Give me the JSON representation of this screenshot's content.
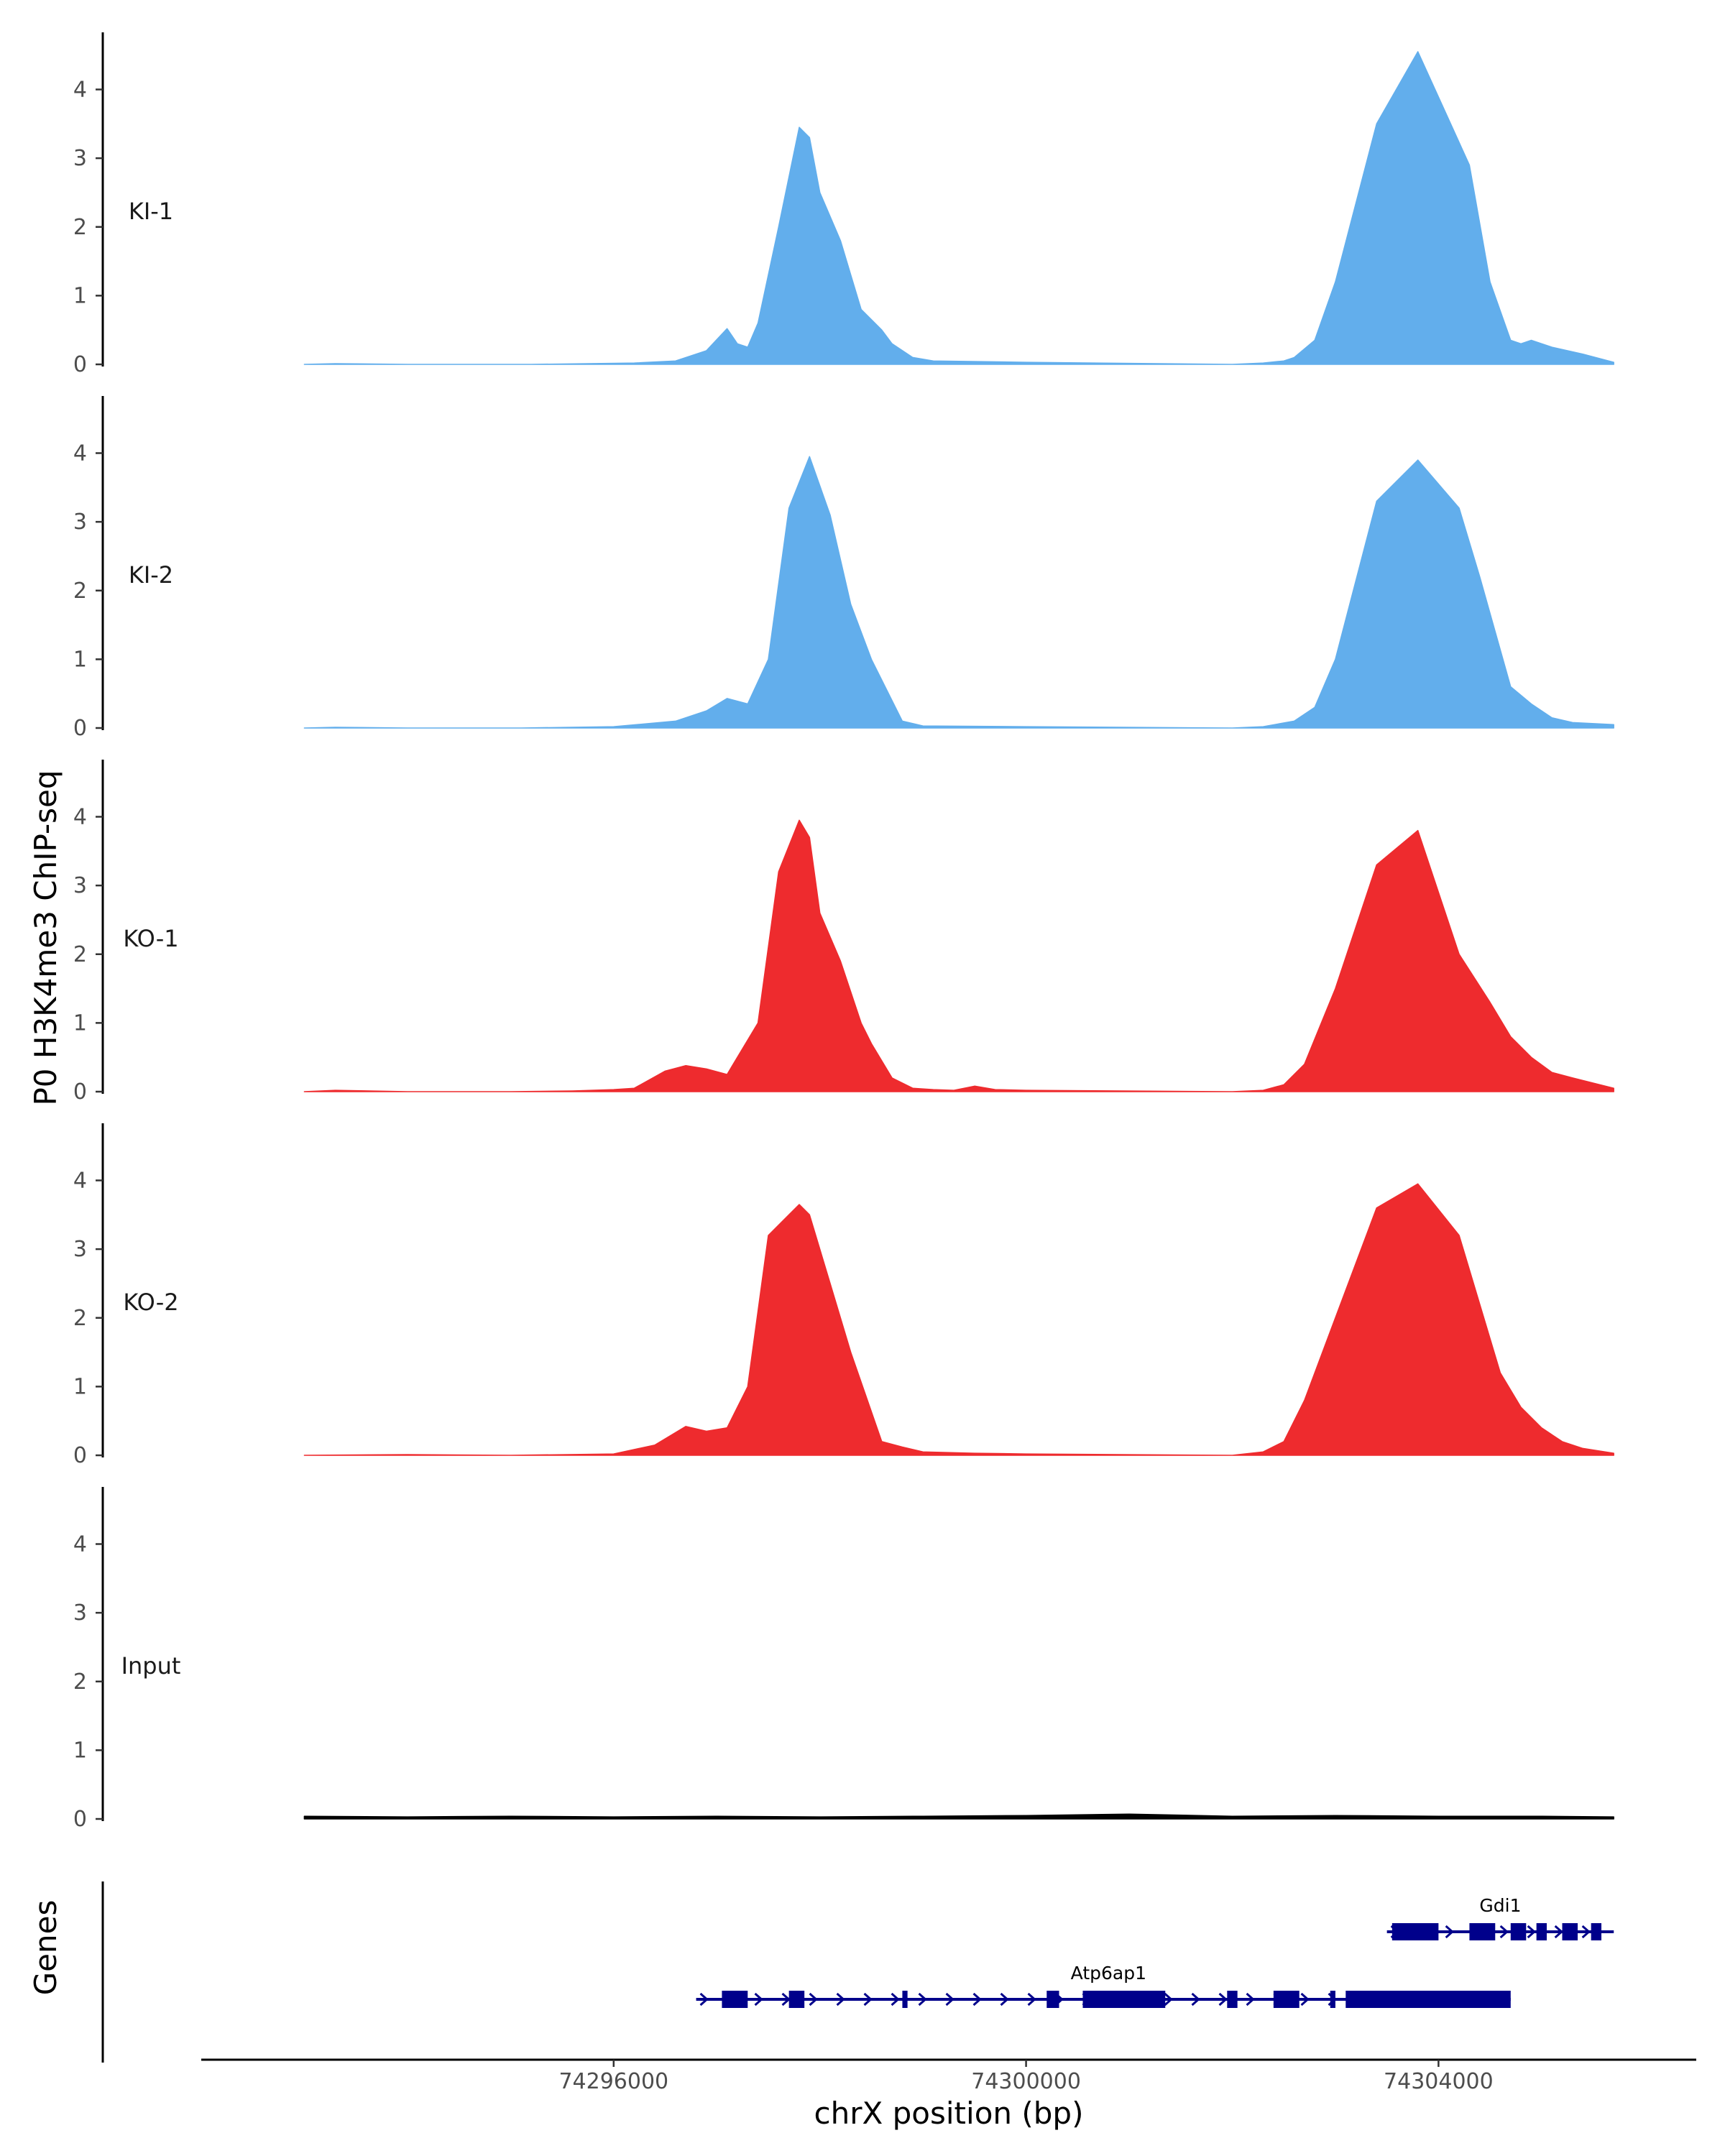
{
  "chart_data": {
    "type": "area",
    "ylabel": "P0 H3K4me3 ChIP-seq",
    "xlabel": "chrX position (bp)",
    "xlim": [
      74292000,
      74306500
    ],
    "data_xrange": [
      74293000,
      74305700
    ],
    "ylim": [
      0,
      4.8
    ],
    "yticks": [
      "0",
      "1",
      "2",
      "3",
      "4"
    ],
    "xticks": [
      {
        "value": 74296000,
        "label": "74296000"
      },
      {
        "value": 74300000,
        "label": "74300000"
      },
      {
        "value": 74304000,
        "label": "74304000"
      }
    ],
    "grid": false,
    "legend": "none",
    "colors": {
      "KI": "#62aeec",
      "KO": "#ee2b2e",
      "Input": "#000000",
      "Genes": "#00008b",
      "axis": "#000000"
    },
    "series": [
      {
        "name": "KI-1",
        "color": "#62aeec",
        "x": [
          74293000,
          74293300,
          74294000,
          74295200,
          74296200,
          74296600,
          74296900,
          74297100,
          74297200,
          74297300,
          74297400,
          74297600,
          74297800,
          74297900,
          74298000,
          74298200,
          74298400,
          74298500,
          74298600,
          74298700,
          74298900,
          74299100,
          74300000,
          74302000,
          74302300,
          74302500,
          74302600,
          74302800,
          74303000,
          74303400,
          74303800,
          74304300,
          74304500,
          74304700,
          74304800,
          74304900,
          74305100,
          74305400,
          74305700
        ],
        "values": [
          0,
          0.01,
          0,
          0,
          0.02,
          0.05,
          0.2,
          0.52,
          0.3,
          0.25,
          0.6,
          2.0,
          3.45,
          3.3,
          2.5,
          1.8,
          0.8,
          0.65,
          0.5,
          0.3,
          0.1,
          0.05,
          0.03,
          0,
          0.02,
          0.05,
          0.1,
          0.35,
          1.2,
          3.5,
          4.55,
          2.9,
          1.2,
          0.35,
          0.3,
          0.35,
          0.25,
          0.15,
          0.03
        ]
      },
      {
        "name": "KI-2",
        "color": "#62aeec",
        "x": [
          74293000,
          74293300,
          74294000,
          74295100,
          74296000,
          74296600,
          74296900,
          74297100,
          74297300,
          74297500,
          74297700,
          74297900,
          74298100,
          74298300,
          74298500,
          74298800,
          74299000,
          74300000,
          74302000,
          74302300,
          74302600,
          74302800,
          74303000,
          74303400,
          74303800,
          74304200,
          74304400,
          74304700,
          74304900,
          74305100,
          74305300,
          74305700
        ],
        "values": [
          0,
          0.01,
          0,
          0,
          0.02,
          0.1,
          0.25,
          0.43,
          0.35,
          1.0,
          3.2,
          3.95,
          3.1,
          1.8,
          1.0,
          0.1,
          0.03,
          0.02,
          0,
          0.02,
          0.1,
          0.3,
          1.0,
          3.3,
          3.9,
          3.2,
          2.2,
          0.6,
          0.35,
          0.15,
          0.08,
          0.05
        ]
      },
      {
        "name": "KO-1",
        "color": "#ee2b2e",
        "x": [
          74293000,
          74293300,
          74294000,
          74295000,
          74295600,
          74296000,
          74296200,
          74296500,
          74296700,
          74296900,
          74297100,
          74297400,
          74297600,
          74297800,
          74297900,
          74298000,
          74298200,
          74298400,
          74298500,
          74298700,
          74298900,
          74299100,
          74299300,
          74299500,
          74299700,
          74300000,
          74302000,
          74302300,
          74302500,
          74302700,
          74303000,
          74303400,
          74303800,
          74304200,
          74304500,
          74304700,
          74304900,
          74305100,
          74305300,
          74305700
        ],
        "values": [
          0,
          0.02,
          0,
          0,
          0.01,
          0.03,
          0.05,
          0.3,
          0.38,
          0.33,
          0.25,
          1.0,
          3.2,
          3.95,
          3.7,
          2.6,
          1.9,
          1.0,
          0.7,
          0.2,
          0.05,
          0.03,
          0.02,
          0.08,
          0.03,
          0.02,
          0,
          0.02,
          0.1,
          0.4,
          1.5,
          3.3,
          3.8,
          2.0,
          1.3,
          0.8,
          0.5,
          0.28,
          0.2,
          0.05
        ]
      },
      {
        "name": "KO-2",
        "color": "#ee2b2e",
        "x": [
          74293000,
          74294000,
          74295000,
          74296000,
          74296400,
          74296700,
          74296900,
          74297100,
          74297300,
          74297500,
          74297700,
          74297800,
          74297900,
          74298100,
          74298300,
          74298600,
          74298800,
          74299000,
          74299500,
          74300000,
          74302000,
          74302300,
          74302500,
          74302700,
          74303000,
          74303400,
          74303800,
          74304200,
          74304600,
          74304800,
          74305000,
          74305200,
          74305400,
          74305700
        ],
        "values": [
          0,
          0.01,
          0,
          0.02,
          0.15,
          0.42,
          0.35,
          0.4,
          1.0,
          3.2,
          3.5,
          3.65,
          3.5,
          2.5,
          1.5,
          0.2,
          0.12,
          0.05,
          0.03,
          0.02,
          0,
          0.05,
          0.2,
          0.8,
          2.0,
          3.6,
          3.95,
          3.2,
          1.2,
          0.7,
          0.4,
          0.2,
          0.1,
          0.03
        ]
      },
      {
        "name": "Input",
        "color": "#000000",
        "x": [
          74293000,
          74294000,
          74295000,
          74296000,
          74297000,
          74298000,
          74299000,
          74300000,
          74301000,
          74302000,
          74303000,
          74304000,
          74305000,
          74305700
        ],
        "values": [
          0.04,
          0.03,
          0.04,
          0.03,
          0.04,
          0.03,
          0.04,
          0.05,
          0.07,
          0.04,
          0.05,
          0.04,
          0.04,
          0.03
        ]
      }
    ],
    "genes_label": "Genes",
    "genes": [
      {
        "name": "Gdi1",
        "start": 74303500,
        "end": 74305700,
        "exons": [
          [
            74303550,
            74304000
          ],
          [
            74304300,
            74304550
          ],
          [
            74304700,
            74304850
          ],
          [
            74304950,
            74305050
          ],
          [
            74305200,
            74305350
          ],
          [
            74305480,
            74305580
          ]
        ]
      },
      {
        "name": "Atp6ap1",
        "start": 74296800,
        "end": 74304700,
        "exons": [
          [
            74297050,
            74297300
          ],
          [
            74297700,
            74297850
          ],
          [
            74298800,
            74298850
          ],
          [
            74300200,
            74300320
          ],
          [
            74300550,
            74301350
          ],
          [
            74301950,
            74302050
          ],
          [
            74302400,
            74302650
          ],
          [
            74302950,
            74303000
          ],
          [
            74303100,
            74304700
          ]
        ]
      }
    ]
  }
}
